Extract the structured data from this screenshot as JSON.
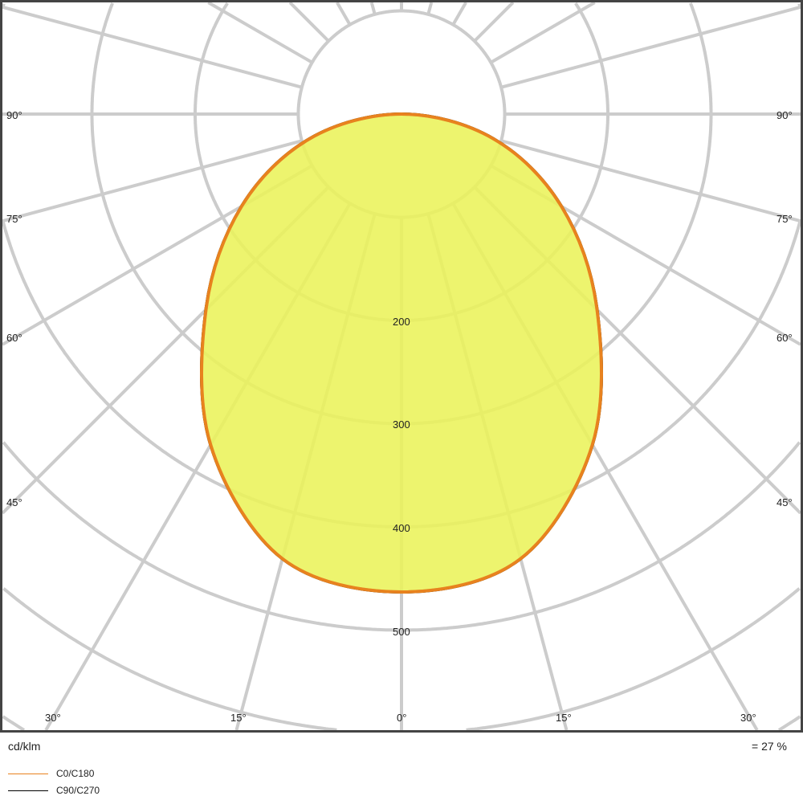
{
  "chart_data": {
    "type": "polar",
    "unit_label": "cd/klm",
    "efficiency_label": "= 27 %",
    "radial_ticks": [
      200,
      300,
      400,
      500
    ],
    "radial_rings": [
      100,
      200,
      300,
      400,
      500,
      600,
      700
    ],
    "angle_labels": {
      "left": [
        "90°",
        "75°",
        "60°",
        "45°"
      ],
      "right": [
        "90°",
        "75°",
        "60°",
        "45°"
      ],
      "bottom": [
        "30°",
        "15°",
        "0°",
        "15°",
        "30°"
      ]
    },
    "angle_step_deg": 15,
    "series": [
      {
        "name": "C0/C180",
        "color": "#e8821e",
        "angles": [
          0,
          15,
          30,
          45,
          60,
          75,
          90
        ],
        "values": [
          463,
          446,
          370,
          268,
          179,
          92,
          0
        ]
      },
      {
        "name": "C90/C270",
        "color": "#000000",
        "angles": [
          0,
          15,
          30,
          45,
          60,
          75,
          90
        ],
        "values": [
          463,
          446,
          370,
          268,
          179,
          92,
          0
        ]
      }
    ],
    "fill_color": "#ebf25a",
    "grid": true
  }
}
